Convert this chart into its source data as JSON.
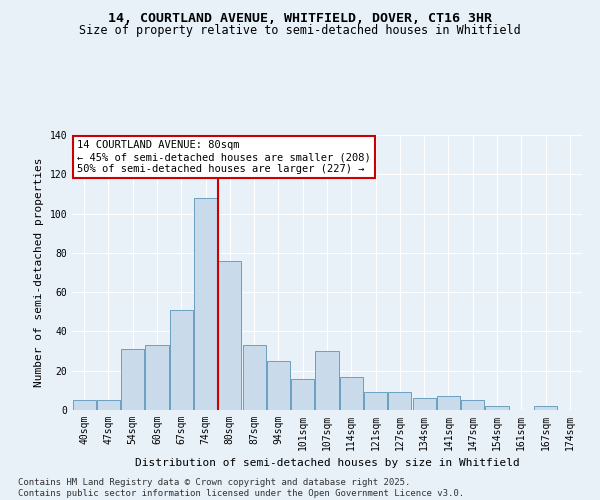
{
  "title1": "14, COURTLAND AVENUE, WHITFIELD, DOVER, CT16 3HR",
  "title2": "Size of property relative to semi-detached houses in Whitfield",
  "xlabel": "Distribution of semi-detached houses by size in Whitfield",
  "ylabel": "Number of semi-detached properties",
  "categories": [
    "40sqm",
    "47sqm",
    "54sqm",
    "60sqm",
    "67sqm",
    "74sqm",
    "80sqm",
    "87sqm",
    "94sqm",
    "101sqm",
    "107sqm",
    "114sqm",
    "121sqm",
    "127sqm",
    "134sqm",
    "141sqm",
    "147sqm",
    "154sqm",
    "161sqm",
    "167sqm",
    "174sqm"
  ],
  "values": [
    5,
    5,
    31,
    33,
    51,
    108,
    76,
    33,
    25,
    16,
    30,
    17,
    9,
    9,
    6,
    7,
    5,
    2,
    0,
    2,
    0
  ],
  "bar_color": "#c9daea",
  "bar_edge_color": "#6a9ec0",
  "vline_index": 5,
  "vline_color": "#cc0000",
  "annotation_title": "14 COURTLAND AVENUE: 80sqm",
  "annotation_line1": "← 45% of semi-detached houses are smaller (208)",
  "annotation_line2": "50% of semi-detached houses are larger (227) →",
  "annotation_box_edgecolor": "#cc0000",
  "ylim": [
    0,
    140
  ],
  "yticks": [
    0,
    20,
    40,
    60,
    80,
    100,
    120,
    140
  ],
  "footer1": "Contains HM Land Registry data © Crown copyright and database right 2025.",
  "footer2": "Contains public sector information licensed under the Open Government Licence v3.0.",
  "bg_color": "#e8f0f8",
  "plot_bg_color": "#e8f0f8",
  "title1_fontsize": 9.5,
  "title2_fontsize": 8.5,
  "tick_fontsize": 7,
  "ylabel_fontsize": 8,
  "xlabel_fontsize": 8,
  "footer_fontsize": 6.5,
  "ann_fontsize": 7.5
}
